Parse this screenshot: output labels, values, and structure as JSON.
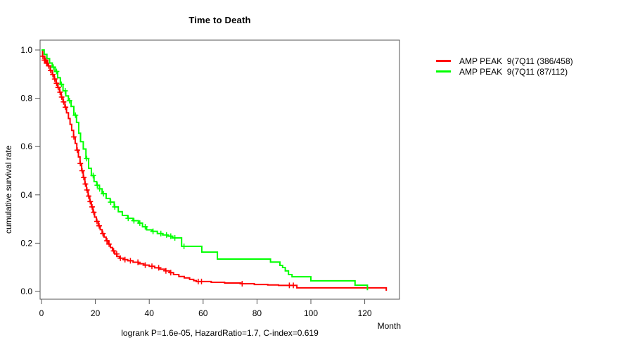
{
  "title": "Time to Death",
  "caption": "logrank P=1.6e-05, HazardRatio=1.7, C-index=0.619",
  "stats": {
    "logrank_p": "1.6e-05",
    "hazard_ratio": "1.7",
    "c_index": "0.619"
  },
  "chart_data": {
    "type": "line",
    "subtype": "kaplan-meier-survival-step",
    "title": "Time to Death",
    "xlabel": "Month",
    "ylabel": "cumulative survival rate",
    "xlim": [
      0,
      133
    ],
    "ylim": [
      0,
      1.0
    ],
    "x_ticks": [
      0,
      20,
      40,
      60,
      80,
      100,
      120
    ],
    "y_ticks": [
      "0.0",
      "0.2",
      "0.4",
      "0.6",
      "0.8",
      "1.0"
    ],
    "grid": false,
    "legend_position": "outside-top-right",
    "annotation": "logrank P=1.6e-05, HazardRatio=1.7, C-index=0.619",
    "axis_color": "#555555",
    "series": [
      {
        "id": "red",
        "name": "AMP PEAK  9(7Q11 (386/458)",
        "group_counts": "386/458",
        "color": "#ff0000",
        "points": [
          [
            0,
            1.0
          ],
          [
            0.4,
            0.974
          ],
          [
            1,
            0.958
          ],
          [
            1.8,
            0.945
          ],
          [
            2.5,
            0.934
          ],
          [
            3.2,
            0.915
          ],
          [
            4,
            0.898
          ],
          [
            4.7,
            0.88
          ],
          [
            5.4,
            0.862
          ],
          [
            6,
            0.845
          ],
          [
            6.7,
            0.825
          ],
          [
            7.3,
            0.805
          ],
          [
            8,
            0.785
          ],
          [
            8.7,
            0.763
          ],
          [
            9.3,
            0.74
          ],
          [
            10,
            0.716
          ],
          [
            10.6,
            0.692
          ],
          [
            11.2,
            0.667
          ],
          [
            11.9,
            0.64
          ],
          [
            12.5,
            0.613
          ],
          [
            13.1,
            0.585
          ],
          [
            13.7,
            0.557
          ],
          [
            14.3,
            0.53
          ],
          [
            14.9,
            0.5
          ],
          [
            15.5,
            0.472
          ],
          [
            16.1,
            0.445
          ],
          [
            16.7,
            0.42
          ],
          [
            17.3,
            0.395
          ],
          [
            17.9,
            0.372
          ],
          [
            18.5,
            0.35
          ],
          [
            19.1,
            0.328
          ],
          [
            19.7,
            0.308
          ],
          [
            20.4,
            0.29
          ],
          [
            21.1,
            0.272
          ],
          [
            21.8,
            0.256
          ],
          [
            22.5,
            0.24
          ],
          [
            23.2,
            0.225
          ],
          [
            24,
            0.21
          ],
          [
            24.8,
            0.196
          ],
          [
            25.6,
            0.182
          ],
          [
            26.4,
            0.168
          ],
          [
            27.2,
            0.155
          ],
          [
            28,
            0.145
          ],
          [
            29,
            0.138
          ],
          [
            30.5,
            0.132
          ],
          [
            32,
            0.127
          ],
          [
            34,
            0.121
          ],
          [
            36,
            0.115
          ],
          [
            38,
            0.109
          ],
          [
            40,
            0.104
          ],
          [
            42,
            0.098
          ],
          [
            44,
            0.092
          ],
          [
            46,
            0.085
          ],
          [
            47.5,
            0.078
          ],
          [
            49,
            0.07
          ],
          [
            51,
            0.062
          ],
          [
            53,
            0.056
          ],
          [
            55,
            0.05
          ],
          [
            56.5,
            0.045
          ],
          [
            57.5,
            0.041
          ],
          [
            63,
            0.038
          ],
          [
            68,
            0.035
          ],
          [
            74,
            0.032
          ],
          [
            79,
            0.029
          ],
          [
            84,
            0.027
          ],
          [
            88,
            0.025
          ],
          [
            94.8,
            0.015
          ],
          [
            127.5,
            0.015
          ],
          [
            128,
            0.003
          ]
        ],
        "censor_months": [
          0.5,
          1.1,
          1.5,
          1.9,
          2.3,
          2.7,
          3.4,
          4.2,
          4.9,
          5.6,
          6.2,
          6.9,
          7.5,
          8.2,
          8.9,
          12,
          13.3,
          14.4,
          15.1,
          15.7,
          16.3,
          16.9,
          17.5,
          18.1,
          18.8,
          19.4,
          20.6,
          21.4,
          22.8,
          24.3,
          25.1,
          26.8,
          27.9,
          29.3,
          31,
          33,
          35.8,
          38.5,
          41,
          43.5,
          46.2,
          48,
          58.2,
          59.4,
          74.5,
          92,
          93.5
        ]
      },
      {
        "id": "green",
        "name": "AMP PEAK  9(7Q11 (87/112)",
        "group_counts": "87/112",
        "color": "#00ff00",
        "points": [
          [
            0,
            1.0
          ],
          [
            1,
            0.982
          ],
          [
            2,
            0.964
          ],
          [
            3,
            0.946
          ],
          [
            4,
            0.929
          ],
          [
            5,
            0.911
          ],
          [
            6,
            0.885
          ],
          [
            7,
            0.858
          ],
          [
            8,
            0.831
          ],
          [
            9,
            0.81
          ],
          [
            10,
            0.79
          ],
          [
            11,
            0.766
          ],
          [
            12,
            0.73
          ],
          [
            13,
            0.7
          ],
          [
            13.8,
            0.655
          ],
          [
            14.5,
            0.62
          ],
          [
            15.5,
            0.59
          ],
          [
            16.5,
            0.55
          ],
          [
            17.5,
            0.51
          ],
          [
            18.5,
            0.48
          ],
          [
            19.5,
            0.455
          ],
          [
            20.5,
            0.44
          ],
          [
            21.5,
            0.425
          ],
          [
            22.5,
            0.405
          ],
          [
            24,
            0.385
          ],
          [
            25.5,
            0.37
          ],
          [
            27,
            0.35
          ],
          [
            28.5,
            0.33
          ],
          [
            30,
            0.315
          ],
          [
            32,
            0.303
          ],
          [
            34,
            0.293
          ],
          [
            36,
            0.283
          ],
          [
            37.5,
            0.268
          ],
          [
            39,
            0.255
          ],
          [
            41,
            0.249
          ],
          [
            43,
            0.24
          ],
          [
            45,
            0.234
          ],
          [
            47,
            0.229
          ],
          [
            48.5,
            0.222
          ],
          [
            52,
            0.187
          ],
          [
            59.5,
            0.163
          ],
          [
            65.3,
            0.134
          ],
          [
            85,
            0.122
          ],
          [
            88.5,
            0.108
          ],
          [
            89.5,
            0.099
          ],
          [
            90.5,
            0.085
          ],
          [
            91.7,
            0.07
          ],
          [
            93,
            0.061
          ],
          [
            100,
            0.044
          ],
          [
            116.4,
            0.026
          ],
          [
            121,
            0.005
          ]
        ],
        "censor_months": [
          4.4,
          5.6,
          7.4,
          8.8,
          10.4,
          12.6,
          16.8,
          19.2,
          20.7,
          21.6,
          23,
          25.7,
          27.2,
          32.2,
          34.3,
          36.5,
          38.5,
          41.4,
          44.3,
          46.4,
          48,
          49.5,
          52.9
        ]
      }
    ]
  }
}
